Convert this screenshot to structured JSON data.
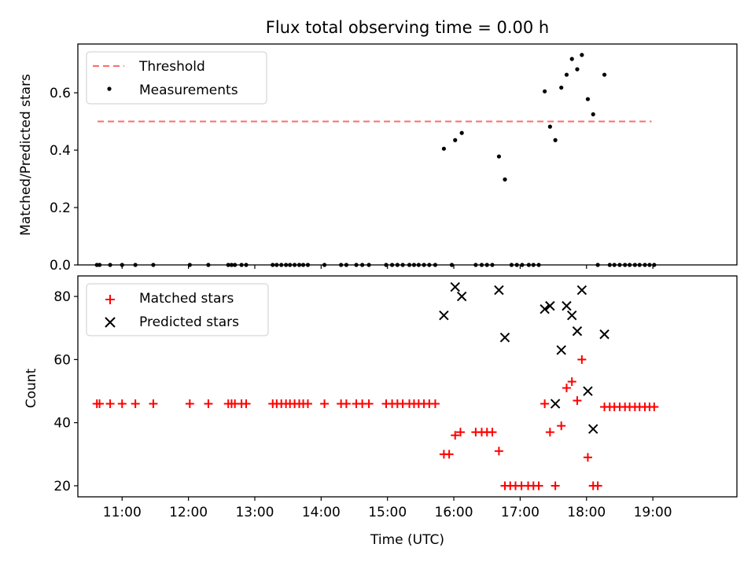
{
  "chart_data": [
    {
      "type": "scatter",
      "title": "Flux total observing time = 0.00 h",
      "xlabel": "",
      "ylabel": "Matched/Predicted stars",
      "xlim": [
        10.333,
        20.267
      ],
      "ylim": [
        0.0,
        0.77
      ],
      "yticks": [
        0.0,
        0.2,
        0.4,
        0.6
      ],
      "ytick_labels": [
        "0.0",
        "0.2",
        "0.4",
        "0.6"
      ],
      "xticks": [
        11,
        12,
        13,
        14,
        15,
        16,
        17,
        18,
        19
      ],
      "x_unit": "hours (UTC)",
      "legend_position": "upper-left",
      "colors": {
        "threshold": "#ff6b6b",
        "measurements": "#000000"
      },
      "threshold": {
        "name": "Threshold",
        "y": 0.5,
        "x_range": [
          10.63,
          18.98
        ]
      },
      "series": [
        {
          "name": "Measurements",
          "marker": "dot",
          "points": [
            [
              10.62,
              0
            ],
            [
              10.66,
              0
            ],
            [
              10.82,
              0
            ],
            [
              11.0,
              0
            ],
            [
              11.2,
              0
            ],
            [
              11.47,
              0
            ],
            [
              12.02,
              0
            ],
            [
              12.3,
              0
            ],
            [
              12.6,
              0
            ],
            [
              12.65,
              0
            ],
            [
              12.7,
              0
            ],
            [
              12.8,
              0
            ],
            [
              12.87,
              0
            ],
            [
              13.27,
              0
            ],
            [
              13.33,
              0
            ],
            [
              13.4,
              0
            ],
            [
              13.47,
              0
            ],
            [
              13.53,
              0
            ],
            [
              13.6,
              0
            ],
            [
              13.67,
              0
            ],
            [
              13.73,
              0
            ],
            [
              13.8,
              0
            ],
            [
              14.05,
              0
            ],
            [
              14.3,
              0
            ],
            [
              14.38,
              0
            ],
            [
              14.53,
              0
            ],
            [
              14.62,
              0
            ],
            [
              14.72,
              0
            ],
            [
              14.98,
              0
            ],
            [
              15.07,
              0
            ],
            [
              15.15,
              0
            ],
            [
              15.23,
              0
            ],
            [
              15.33,
              0
            ],
            [
              15.4,
              0
            ],
            [
              15.47,
              0
            ],
            [
              15.55,
              0
            ],
            [
              15.63,
              0
            ],
            [
              15.72,
              0
            ],
            [
              15.97,
              0
            ],
            [
              16.33,
              0
            ],
            [
              16.42,
              0
            ],
            [
              16.5,
              0
            ],
            [
              16.58,
              0
            ],
            [
              16.87,
              0
            ],
            [
              16.95,
              0
            ],
            [
              17.03,
              0
            ],
            [
              17.13,
              0
            ],
            [
              17.2,
              0
            ],
            [
              17.28,
              0
            ],
            [
              18.17,
              0
            ],
            [
              18.35,
              0
            ],
            [
              18.42,
              0
            ],
            [
              18.5,
              0
            ],
            [
              18.58,
              0
            ],
            [
              18.65,
              0
            ],
            [
              18.73,
              0
            ],
            [
              18.8,
              0
            ],
            [
              18.88,
              0
            ],
            [
              18.95,
              0
            ],
            [
              19.02,
              0
            ],
            [
              15.85,
              0.405
            ],
            [
              16.02,
              0.435
            ],
            [
              16.12,
              0.46
            ],
            [
              16.68,
              0.378
            ],
            [
              16.77,
              0.298
            ],
            [
              17.37,
              0.605
            ],
            [
              17.45,
              0.482
            ],
            [
              17.53,
              0.435
            ],
            [
              17.62,
              0.618
            ],
            [
              17.7,
              0.663
            ],
            [
              17.78,
              0.718
            ],
            [
              17.86,
              0.682
            ],
            [
              17.93,
              0.732
            ],
            [
              18.02,
              0.578
            ],
            [
              18.1,
              0.525
            ],
            [
              18.27,
              0.663
            ]
          ]
        }
      ]
    },
    {
      "type": "scatter",
      "title": "",
      "xlabel": "Time (UTC)",
      "ylabel": "Count",
      "xlim": [
        10.333,
        20.267
      ],
      "ylim": [
        16.5,
        86.5
      ],
      "yticks": [
        20,
        40,
        60,
        80
      ],
      "ytick_labels": [
        "20",
        "40",
        "60",
        "80"
      ],
      "xticks": [
        11,
        12,
        13,
        14,
        15,
        16,
        17,
        18,
        19
      ],
      "xtick_labels": [
        "11:00",
        "12:00",
        "13:00",
        "14:00",
        "15:00",
        "16:00",
        "17:00",
        "18:00",
        "19:00"
      ],
      "x_unit": "hours (UTC)",
      "legend_position": "upper-left",
      "colors": {
        "matched": "#ff0000",
        "predicted": "#000000"
      },
      "series": [
        {
          "name": "Matched stars",
          "marker": "plus",
          "points": [
            [
              10.62,
              46
            ],
            [
              10.66,
              46
            ],
            [
              10.82,
              46
            ],
            [
              11.0,
              46
            ],
            [
              11.2,
              46
            ],
            [
              11.47,
              46
            ],
            [
              12.02,
              46
            ],
            [
              12.3,
              46
            ],
            [
              12.6,
              46
            ],
            [
              12.65,
              46
            ],
            [
              12.7,
              46
            ],
            [
              12.8,
              46
            ],
            [
              12.87,
              46
            ],
            [
              13.27,
              46
            ],
            [
              13.33,
              46
            ],
            [
              13.4,
              46
            ],
            [
              13.47,
              46
            ],
            [
              13.53,
              46
            ],
            [
              13.6,
              46
            ],
            [
              13.67,
              46
            ],
            [
              13.73,
              46
            ],
            [
              13.8,
              46
            ],
            [
              14.05,
              46
            ],
            [
              14.3,
              46
            ],
            [
              14.38,
              46
            ],
            [
              14.53,
              46
            ],
            [
              14.62,
              46
            ],
            [
              14.72,
              46
            ],
            [
              14.98,
              46
            ],
            [
              15.07,
              46
            ],
            [
              15.15,
              46
            ],
            [
              15.23,
              46
            ],
            [
              15.33,
              46
            ],
            [
              15.4,
              46
            ],
            [
              15.47,
              46
            ],
            [
              15.55,
              46
            ],
            [
              15.63,
              46
            ],
            [
              15.72,
              46
            ],
            [
              15.85,
              30
            ],
            [
              15.93,
              30
            ],
            [
              16.02,
              36
            ],
            [
              16.1,
              37
            ],
            [
              16.33,
              37
            ],
            [
              16.42,
              37
            ],
            [
              16.5,
              37
            ],
            [
              16.58,
              37
            ],
            [
              16.68,
              31
            ],
            [
              16.77,
              20
            ],
            [
              16.85,
              20
            ],
            [
              16.93,
              20
            ],
            [
              17.02,
              20
            ],
            [
              17.12,
              20
            ],
            [
              17.2,
              20
            ],
            [
              17.28,
              20
            ],
            [
              17.37,
              46
            ],
            [
              17.45,
              37
            ],
            [
              17.53,
              20
            ],
            [
              17.62,
              39
            ],
            [
              17.7,
              51
            ],
            [
              17.78,
              53
            ],
            [
              17.86,
              47
            ],
            [
              17.93,
              60
            ],
            [
              18.02,
              29
            ],
            [
              18.1,
              20
            ],
            [
              18.17,
              20
            ],
            [
              18.27,
              45
            ],
            [
              18.35,
              45
            ],
            [
              18.42,
              45
            ],
            [
              18.5,
              45
            ],
            [
              18.58,
              45
            ],
            [
              18.65,
              45
            ],
            [
              18.73,
              45
            ],
            [
              18.8,
              45
            ],
            [
              18.88,
              45
            ],
            [
              18.95,
              45
            ],
            [
              19.02,
              45
            ]
          ]
        },
        {
          "name": "Predicted stars",
          "marker": "x",
          "points": [
            [
              15.85,
              74
            ],
            [
              16.02,
              83
            ],
            [
              16.12,
              80
            ],
            [
              16.68,
              82
            ],
            [
              16.77,
              67
            ],
            [
              17.37,
              76
            ],
            [
              17.45,
              77
            ],
            [
              17.53,
              46
            ],
            [
              17.62,
              63
            ],
            [
              17.7,
              77
            ],
            [
              17.78,
              74
            ],
            [
              17.86,
              69
            ],
            [
              17.93,
              82
            ],
            [
              18.02,
              50
            ],
            [
              18.1,
              38
            ],
            [
              18.27,
              68
            ]
          ]
        }
      ]
    }
  ]
}
